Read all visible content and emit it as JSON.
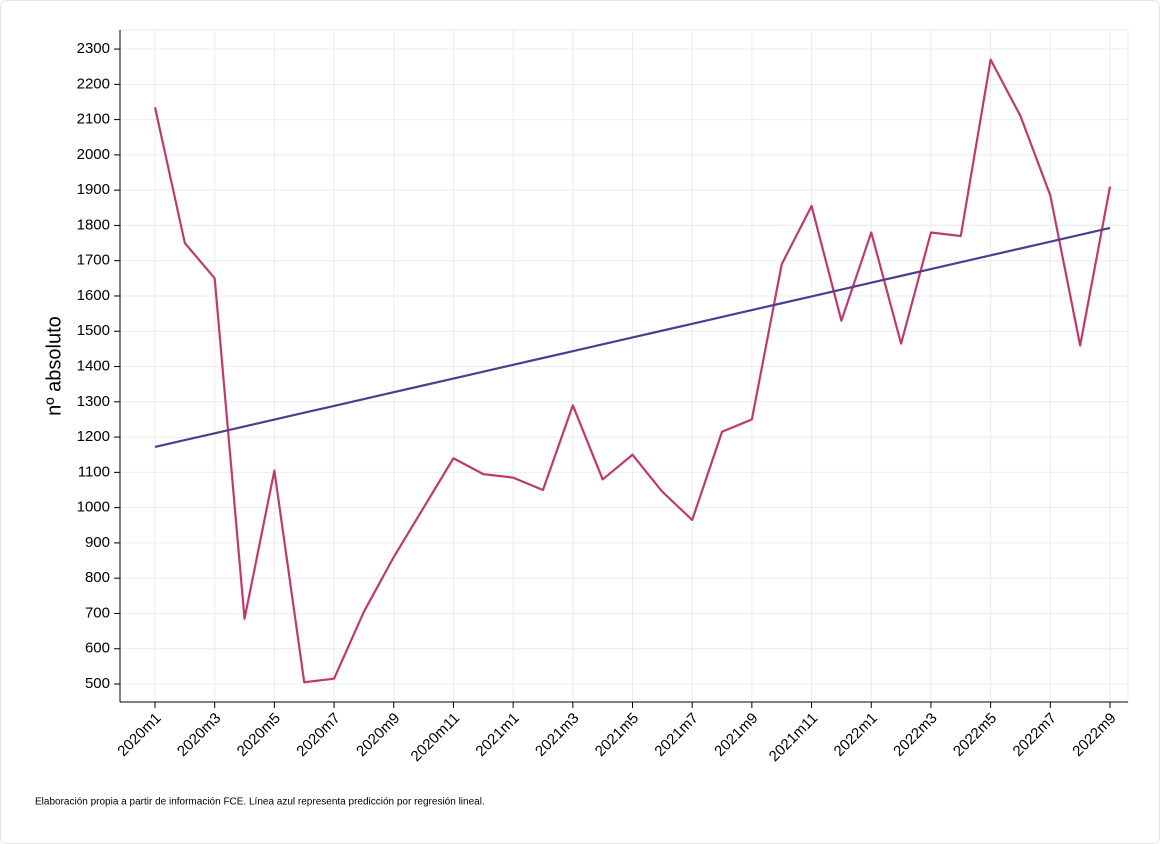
{
  "chart_data": {
    "type": "line",
    "y_label": "nº absoluto",
    "note": "Elaboración propia a partir de información FCE. Línea azul representa predicción por regresión lineal.",
    "categories": [
      "2020m1",
      null,
      "2020m3",
      null,
      "2020m5",
      null,
      "2020m7",
      null,
      "2020m9",
      null,
      "2020m11",
      null,
      "2021m1",
      null,
      "2021m3",
      null,
      "2021m5",
      null,
      "2021m7",
      null,
      "2021m9",
      null,
      "2021m11",
      null,
      "2022m1",
      null,
      "2022m3",
      null,
      "2022m5",
      null,
      "2022m7",
      null,
      "2022m9"
    ],
    "series": [
      {
        "color": "#c0396e",
        "values": [
          2135,
          1750,
          1650,
          685,
          1105,
          505,
          515,
          705,
          860,
          1000,
          1140,
          1095,
          1085,
          1050,
          1290,
          1080,
          1150,
          1045,
          965,
          1215,
          1250,
          1690,
          1855,
          1530,
          1780,
          1465,
          1780,
          1770,
          2270,
          2110,
          1885,
          1460,
          1910
        ]
      },
      {
        "color": "#4b3f8f",
        "values": [
          1172,
          1191.4,
          1210.8,
          1230.2,
          1249.6,
          1269,
          1288.4,
          1307.8,
          1327.2,
          1346.6,
          1366,
          1385.4,
          1404.8,
          1424.2,
          1443.6,
          1463,
          1482.4,
          1501.8,
          1521.2,
          1540.6,
          1560,
          1579.4,
          1598.8,
          1618.2,
          1637.6,
          1657,
          1676.4,
          1695.8,
          1715.2,
          1734.6,
          1754,
          1773.4,
          1792.8
        ]
      }
    ],
    "ylim": [
      449,
      2354
    ],
    "yticks": [
      500,
      600,
      700,
      800,
      900,
      1000,
      1100,
      1200,
      1300,
      1400,
      1500,
      1600,
      1700,
      1800,
      1900,
      2000,
      2100,
      2200,
      2300
    ],
    "grid": true
  }
}
